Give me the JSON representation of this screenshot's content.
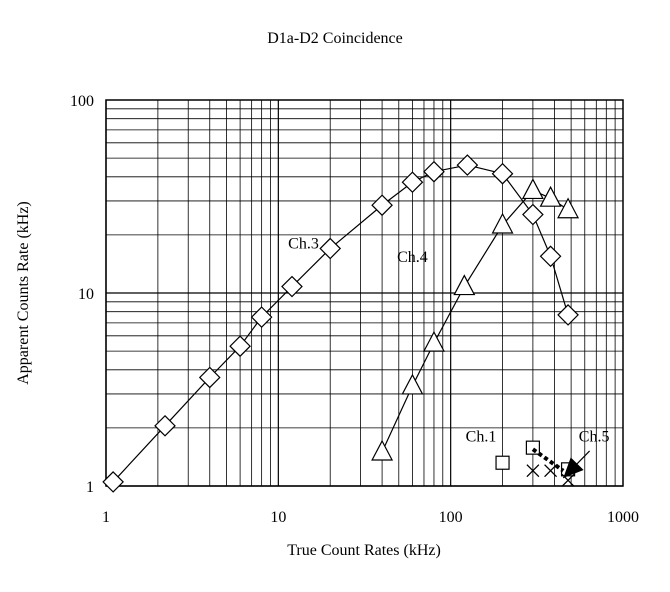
{
  "chart_data": {
    "type": "scatter",
    "title": "D1a-D2 Coincidence",
    "xlabel": "True Count Rates (kHz)",
    "ylabel": "Apparent Counts Rate (kHz)",
    "x_scale": "log",
    "y_scale": "log",
    "xlim": [
      1,
      1000
    ],
    "ylim": [
      1,
      100
    ],
    "x_ticks": [
      "1",
      "10",
      "100",
      "1000"
    ],
    "y_ticks": [
      "1",
      "10",
      "100"
    ],
    "grid": true,
    "legend": "none",
    "series": [
      {
        "name": "Ch.3",
        "marker": "diamond",
        "connected": true,
        "x": [
          1.1,
          2.2,
          4,
          6,
          8,
          12,
          20,
          40,
          60,
          80,
          125,
          200,
          300,
          380,
          480
        ],
        "y": [
          1.05,
          2.05,
          3.65,
          5.3,
          7.5,
          10.8,
          17,
          28.5,
          37.5,
          42.5,
          46,
          41.5,
          25.5,
          15.5,
          7.7
        ]
      },
      {
        "name": "Ch.4",
        "marker": "triangle",
        "connected": true,
        "x": [
          40,
          60,
          80,
          120,
          200,
          300,
          380,
          480
        ],
        "y": [
          1.5,
          3.3,
          5.5,
          10.8,
          22.5,
          34,
          31,
          27
        ]
      },
      {
        "name": "Ch.1",
        "marker": "square",
        "connected": false,
        "x": [
          200,
          300,
          480
        ],
        "y": [
          1.32,
          1.58,
          1.22
        ]
      },
      {
        "name": "Ch.5",
        "marker": "x",
        "connected": false,
        "x": [
          300,
          380,
          480
        ],
        "y": [
          1.2,
          1.2,
          1.07
        ]
      }
    ],
    "annotations": [
      {
        "text": "Ch.3",
        "x": 14,
        "y": 17
      },
      {
        "text": "Ch.4",
        "x": 60,
        "y": 14.5
      },
      {
        "text": "Ch.1",
        "x": 150,
        "y": 1.7
      },
      {
        "text": "Ch.5",
        "x": 680,
        "y": 1.7
      }
    ],
    "arrows": [
      {
        "style": "dotted",
        "from_x": 300,
        "from_y": 1.55,
        "to_x": 450,
        "to_y": 1.2
      },
      {
        "style": "solid",
        "from_x": 640,
        "from_y": 1.52,
        "to_x": 450,
        "to_y": 1.1
      }
    ]
  }
}
